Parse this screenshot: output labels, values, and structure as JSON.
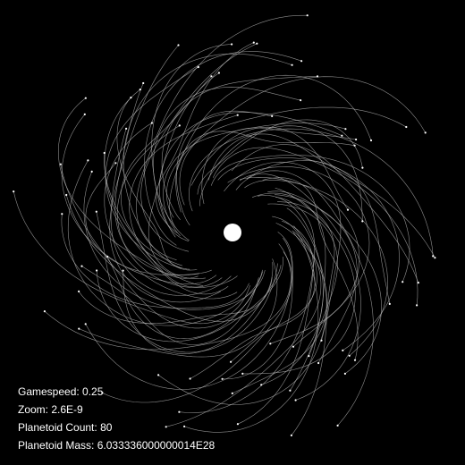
{
  "simulation": {
    "background_color": "#000000",
    "sun_color": "#ffffff",
    "trail_color": "#bdbdbd",
    "planetoid_color": "#ffffff"
  },
  "hud": {
    "gamespeed": "Gamespeed: 0.25",
    "zoom": "Zoom: 2.6E-9",
    "planetoid_count": "Planetoid Count: 80",
    "planetoid_mass": "Planetoid Mass: 6.033336000000014E28"
  }
}
